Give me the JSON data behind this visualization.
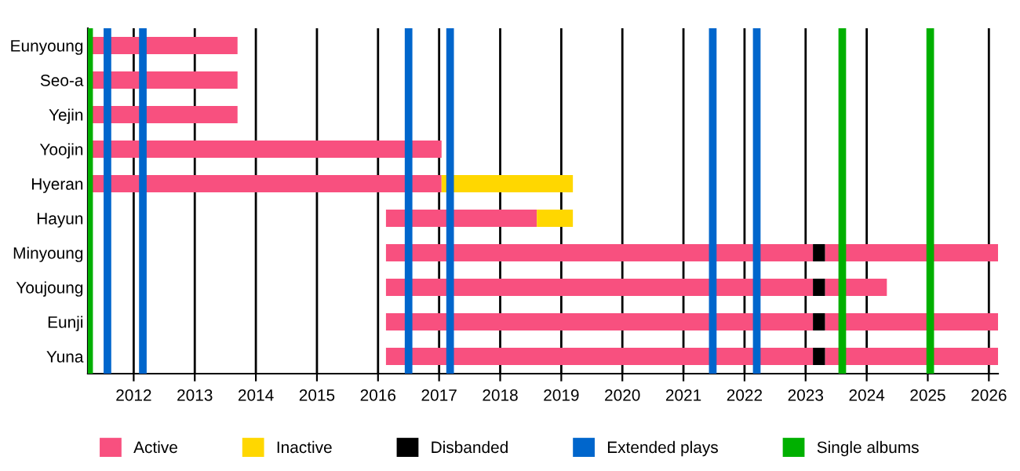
{
  "chart_data": {
    "type": "bar",
    "orientation": "horizontal",
    "categories": [
      "Eunyoung",
      "Seo-a",
      "Yejin",
      "Yoojin",
      "Hyeran",
      "Hayun",
      "Minyoung",
      "Youjoung",
      "Eunji",
      "Yuna"
    ],
    "series": [
      {
        "name": "Active",
        "color": "#f8507f",
        "base": [
          2011.3,
          2011.3,
          2011.3,
          2011.3,
          2011.3,
          2016.13,
          2016.13,
          2016.13,
          2016.13,
          2016.13
        ],
        "values": [
          2.4,
          2.4,
          2.4,
          5.74,
          5.74,
          2.47,
          6.99,
          6.99,
          6.99,
          6.99
        ]
      },
      {
        "name": "Inactive",
        "color": "#ffd700",
        "base": [
          null,
          null,
          null,
          null,
          2017.04,
          2018.6,
          null,
          null,
          null,
          null
        ],
        "values": [
          null,
          null,
          null,
          null,
          2.15,
          0.59,
          null,
          null,
          null,
          null
        ]
      },
      {
        "name": "Disbanded",
        "color": "#000000",
        "base": [
          null,
          null,
          null,
          null,
          null,
          null,
          2023.12,
          2023.12,
          2023.12,
          2023.12
        ],
        "values": [
          null,
          null,
          null,
          null,
          null,
          null,
          0.2,
          0.2,
          0.2,
          0.2
        ]
      },
      {
        "color": "#f8507f",
        "base": [
          null,
          null,
          null,
          null,
          null,
          null,
          2023.32,
          2023.32,
          2023.32,
          2023.32
        ],
        "values": [
          null,
          null,
          null,
          null,
          null,
          null,
          2.83,
          1.01,
          2.83,
          2.83
        ]
      }
    ],
    "xlim": [
      2011.25,
      2026.15
    ],
    "xticks": [
      2012,
      2013,
      2014,
      2015,
      2016,
      2017,
      2018,
      2019,
      2020,
      2021,
      2022,
      2023,
      2024,
      2025,
      2026
    ],
    "grid": "x",
    "legend": "bottom",
    "ref_lines": [
      {
        "axis": "x",
        "value": 2011.27,
        "label": "Single albums",
        "color": "#00b000"
      },
      {
        "axis": "x",
        "value": 2011.57,
        "label": "Extended plays",
        "color": "#0066cc"
      },
      {
        "axis": "x",
        "value": 2012.15,
        "color": "#0066cc"
      },
      {
        "axis": "x",
        "value": 2016.5,
        "color": "#0066cc"
      },
      {
        "axis": "x",
        "value": 2017.18,
        "color": "#0066cc"
      },
      {
        "axis": "x",
        "value": 2021.48,
        "color": "#0066cc"
      },
      {
        "axis": "x",
        "value": 2022.2,
        "color": "#0066cc"
      },
      {
        "axis": "x",
        "value": 2023.6,
        "color": "#00b000"
      },
      {
        "axis": "x",
        "value": 2025.04,
        "color": "#00b000"
      }
    ]
  }
}
